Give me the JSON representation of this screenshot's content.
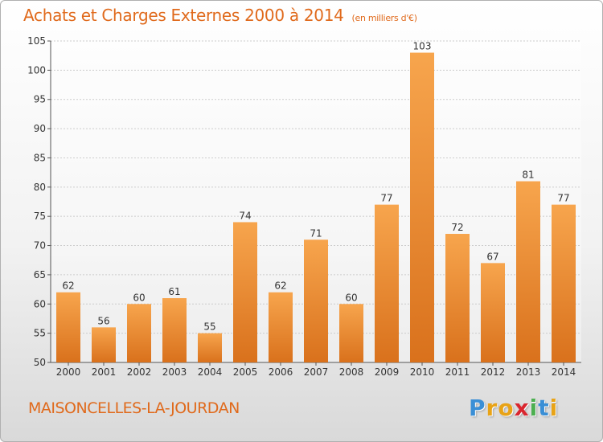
{
  "chart_data": {
    "type": "bar",
    "title": "Achats et Charges Externes 2000 à 2014",
    "unit_label": "(en milliers d'€)",
    "categories": [
      "2000",
      "2001",
      "2002",
      "2003",
      "2004",
      "2005",
      "2006",
      "2007",
      "2008",
      "2009",
      "2010",
      "2011",
      "2012",
      "2013",
      "2014"
    ],
    "values": [
      62,
      56,
      60,
      61,
      55,
      74,
      62,
      71,
      60,
      77,
      103,
      72,
      67,
      81,
      77
    ],
    "ylim": [
      50,
      105
    ],
    "yticks": [
      50,
      55,
      60,
      65,
      70,
      75,
      80,
      85,
      90,
      95,
      100,
      105
    ],
    "grid": true,
    "bar_color": "#f0963a",
    "xlabel": "",
    "ylabel": ""
  },
  "footer": {
    "place": "MAISONCELLES-LA-JOURDAN",
    "logo_letters": [
      "P",
      "r",
      "o",
      "x",
      "i",
      "t",
      "i"
    ],
    "logo_colors": [
      "#3a8fd6",
      "#e8a317",
      "#e8a317",
      "#d9262f",
      "#4caf50",
      "#3a8fd6",
      "#e8a317"
    ]
  },
  "colors": {
    "title": "#e06a1c",
    "grid": "#cccccc"
  }
}
